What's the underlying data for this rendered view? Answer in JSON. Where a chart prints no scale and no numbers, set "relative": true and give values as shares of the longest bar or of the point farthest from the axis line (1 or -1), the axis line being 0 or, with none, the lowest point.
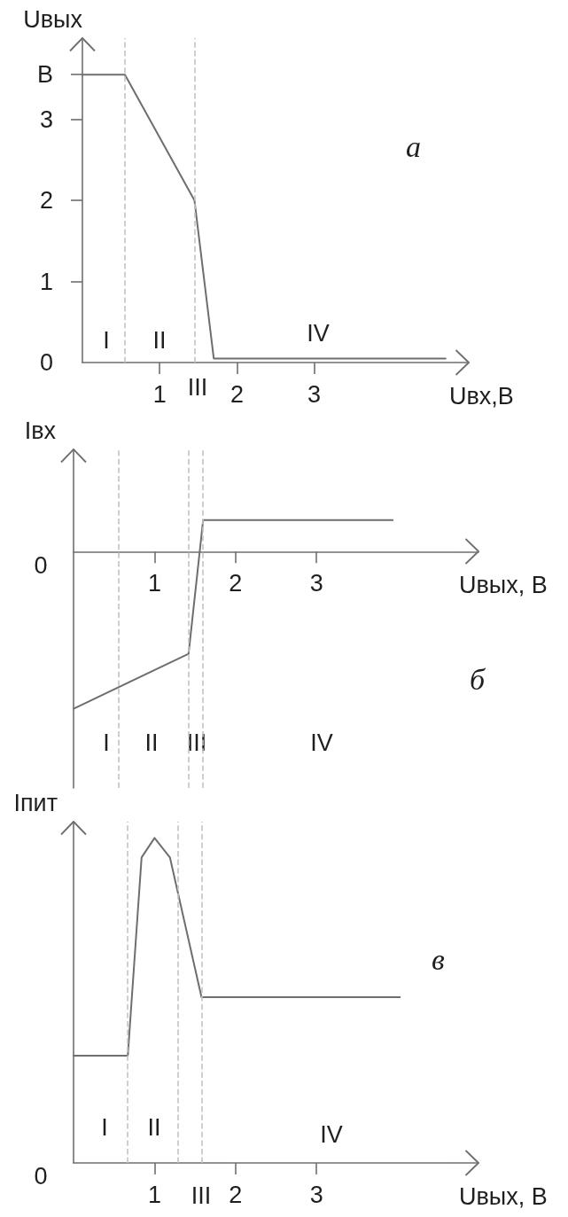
{
  "chart_data": [
    {
      "type": "line",
      "title": "а",
      "xlabel": "Uвх,В",
      "ylabel": "Uвых",
      "x": [
        0,
        0.55,
        1.45,
        1.7,
        4.7
      ],
      "values": [
        3.55,
        3.55,
        2,
        0.05,
        0.05
      ],
      "color": "#6e6e6e",
      "xlim": [
        0,
        5
      ],
      "ylim": [
        0,
        4
      ],
      "xticks": [
        1,
        2,
        3
      ],
      "yticks": [
        0,
        1,
        2,
        3,
        {
          "value": 3.55,
          "label": "В"
        }
      ],
      "ref_lines": [
        {
          "axis": "x",
          "value": 0.55,
          "color": "#c4c4c4",
          "line_style": "dashed"
        },
        {
          "axis": "x",
          "value": 1.45,
          "color": "#c4c4c4",
          "line_style": "dashed"
        }
      ],
      "annotations": [
        "I",
        "II",
        "III",
        "IV"
      ]
    },
    {
      "type": "line",
      "title": "б",
      "xlabel": "Uвых, В",
      "ylabel": "Iвх",
      "relative": true,
      "x": [
        0,
        1.42,
        1.6,
        3.94
      ],
      "values": [
        -1,
        -0.65,
        0.2,
        0.2
      ],
      "color": "#6e6e6e",
      "xlim": [
        0,
        5
      ],
      "xticks": [
        1,
        2,
        3
      ],
      "ref_lines": [
        {
          "axis": "x",
          "value": 0.56,
          "color": "#c4c4c4",
          "line_style": "dashed"
        },
        {
          "axis": "x",
          "value": 1.42,
          "color": "#c4c4c4",
          "line_style": "dashed"
        },
        {
          "axis": "x",
          "value": 1.59,
          "color": "#c4c4c4",
          "line_style": "dashed"
        }
      ],
      "annotations": [
        "I",
        "II",
        "III",
        "IV",
        "0"
      ]
    },
    {
      "type": "line",
      "title": "в",
      "xlabel": "Uвых, В",
      "ylabel": "Iпит",
      "relative": true,
      "x": [
        0,
        0.67,
        0.84,
        1,
        1.19,
        1.58,
        4.03
      ],
      "values": [
        0.33,
        0.33,
        0.94,
        1,
        0.94,
        0.51,
        0.51
      ],
      "color": "#6e6e6e",
      "xlim": [
        0,
        5
      ],
      "xticks": [
        1,
        2,
        3
      ],
      "ref_lines": [
        {
          "axis": "x",
          "value": 0.67,
          "color": "#c4c4c4",
          "line_style": "dashed"
        },
        {
          "axis": "x",
          "value": 1.29,
          "color": "#c4c4c4",
          "line_style": "dashed"
        },
        {
          "axis": "x",
          "value": 1.58,
          "color": "#c4c4c4",
          "line_style": "dashed"
        }
      ],
      "annotations": [
        "I",
        "II",
        "III",
        "IV",
        "0"
      ]
    }
  ]
}
